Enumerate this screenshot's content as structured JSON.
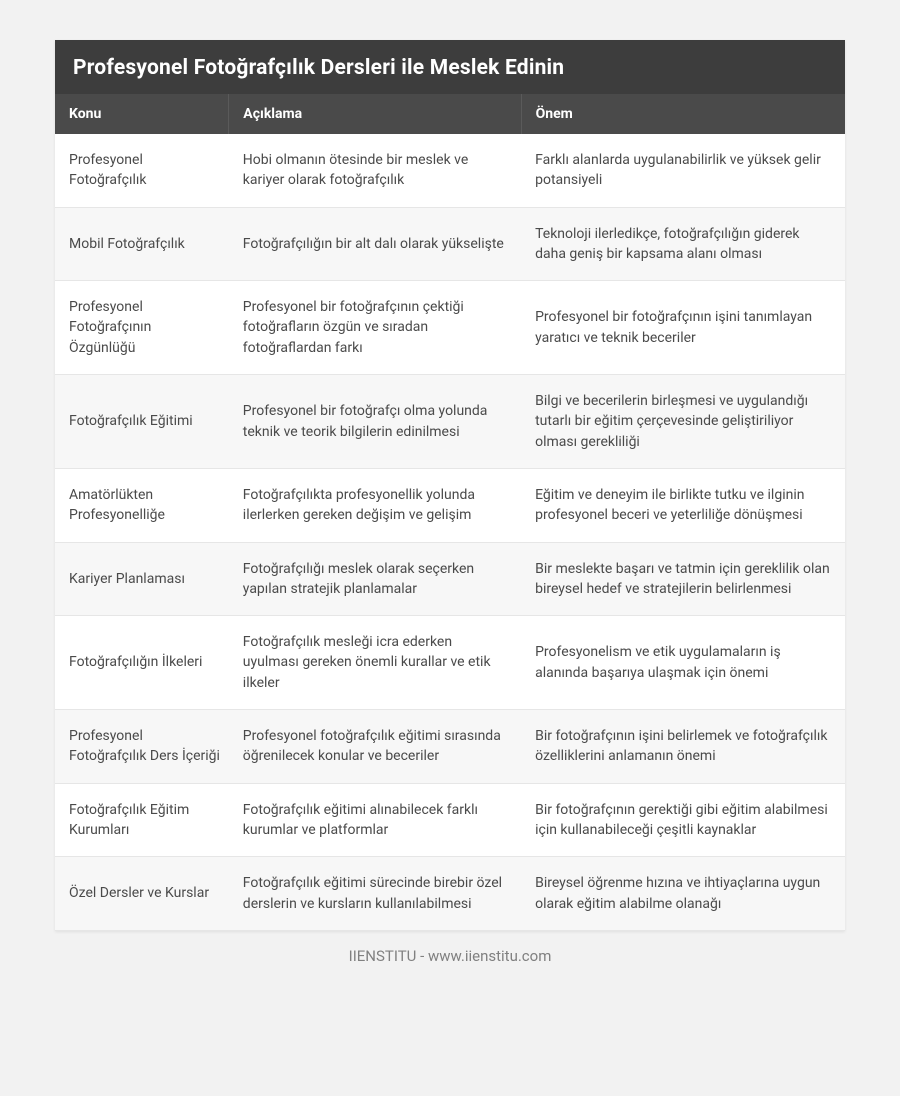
{
  "title": "Profesyonel Fotoğrafçılık Dersleri ile Meslek Edinin",
  "columns": [
    "Konu",
    "Açıklama",
    "Önem"
  ],
  "rows": [
    [
      "Profesyonel Fotoğrafçılık",
      "Hobi olmanın ötesinde bir meslek ve kariyer olarak fotoğrafçılık",
      "Farklı alanlarda uygulanabilirlik ve yüksek gelir potansiyeli"
    ],
    [
      "Mobil Fotoğrafçılık",
      "Fotoğrafçılığın bir alt dalı olarak yükselişte",
      "Teknoloji ilerledikçe, fotoğrafçılığın giderek daha geniş bir kapsama alanı olması"
    ],
    [
      "Profesyonel Fotoğrafçının Özgünlüğü",
      "Profesyonel bir fotoğrafçının çektiği fotoğrafların özgün ve sıradan fotoğraflardan farkı",
      "Profesyonel bir fotoğrafçının işini tanımlayan yaratıcı ve teknik beceriler"
    ],
    [
      "Fotoğrafçılık Eğitimi",
      "Profesyonel bir fotoğrafçı olma yolunda teknik ve teorik bilgilerin edinilmesi",
      "Bilgi ve becerilerin birleşmesi ve uygulandığı tutarlı bir eğitim çerçevesinde geliştiriliyor olması gerekliliği"
    ],
    [
      "Amatörlükten Profesyonelliğe",
      "Fotoğrafçılıkta profesyonellik yolunda ilerlerken gereken değişim ve gelişim",
      "Eğitim ve deneyim ile birlikte tutku ve ilginin profesyonel beceri ve yeterliliğe dönüşmesi"
    ],
    [
      "Kariyer Planlaması",
      "Fotoğrafçılığı meslek olarak seçerken yapılan stratejik planlamalar",
      "Bir meslekte başarı ve tatmin için gereklilik olan bireysel hedef ve stratejilerin belirlenmesi"
    ],
    [
      "Fotoğrafçılığın İlkeleri",
      "Fotoğrafçılık mesleği icra ederken uyulması gereken önemli kurallar ve etik ilkeler",
      "Profesyonelism ve etik uygulamaların iş alanında başarıya ulaşmak için önemi"
    ],
    [
      "Profesyonel Fotoğrafçılık Ders İçeriği",
      "Profesyonel fotoğrafçılık eğitimi sırasında öğrenilecek konular ve beceriler",
      "Bir fotoğrafçının işini belirlemek ve fotoğrafçılık özelliklerini anlamanın önemi"
    ],
    [
      "Fotoğrafçılık Eğitim Kurumları",
      "Fotoğrafçılık eğitimi alınabilecek farklı kurumlar ve platformlar",
      "Bir fotoğrafçının gerektiği gibi eğitim alabilmesi için kullanabileceği çeşitli kaynaklar"
    ],
    [
      "Özel Dersler ve Kurslar",
      "Fotoğrafçılık eğitimi sürecinde birebir özel derslerin ve kursların kullanılabilmesi",
      "Bireysel öğrenme hızına ve ihtiyaçlarına uygun olarak eğitim alabilme olanağı"
    ]
  ],
  "footer": "IIENSTITU - www.iienstitu.com",
  "style": {
    "type": "table",
    "background_color": "#f2f2f2",
    "card_background": "#ffffff",
    "title_background": "#3d3d3d",
    "title_color": "#ffffff",
    "title_fontsize": 21,
    "header_background": "#4a4a4a",
    "header_color": "#ffffff",
    "header_fontsize": 14,
    "cell_fontsize": 14,
    "cell_color": "#4a4a4a",
    "row_alt_background": "#f7f7f7",
    "row_background": "#ffffff",
    "border_color": "#e6e6e6",
    "footer_color": "#808080",
    "footer_fontsize": 15,
    "column_widths_pct": [
      22,
      37,
      41
    ]
  }
}
